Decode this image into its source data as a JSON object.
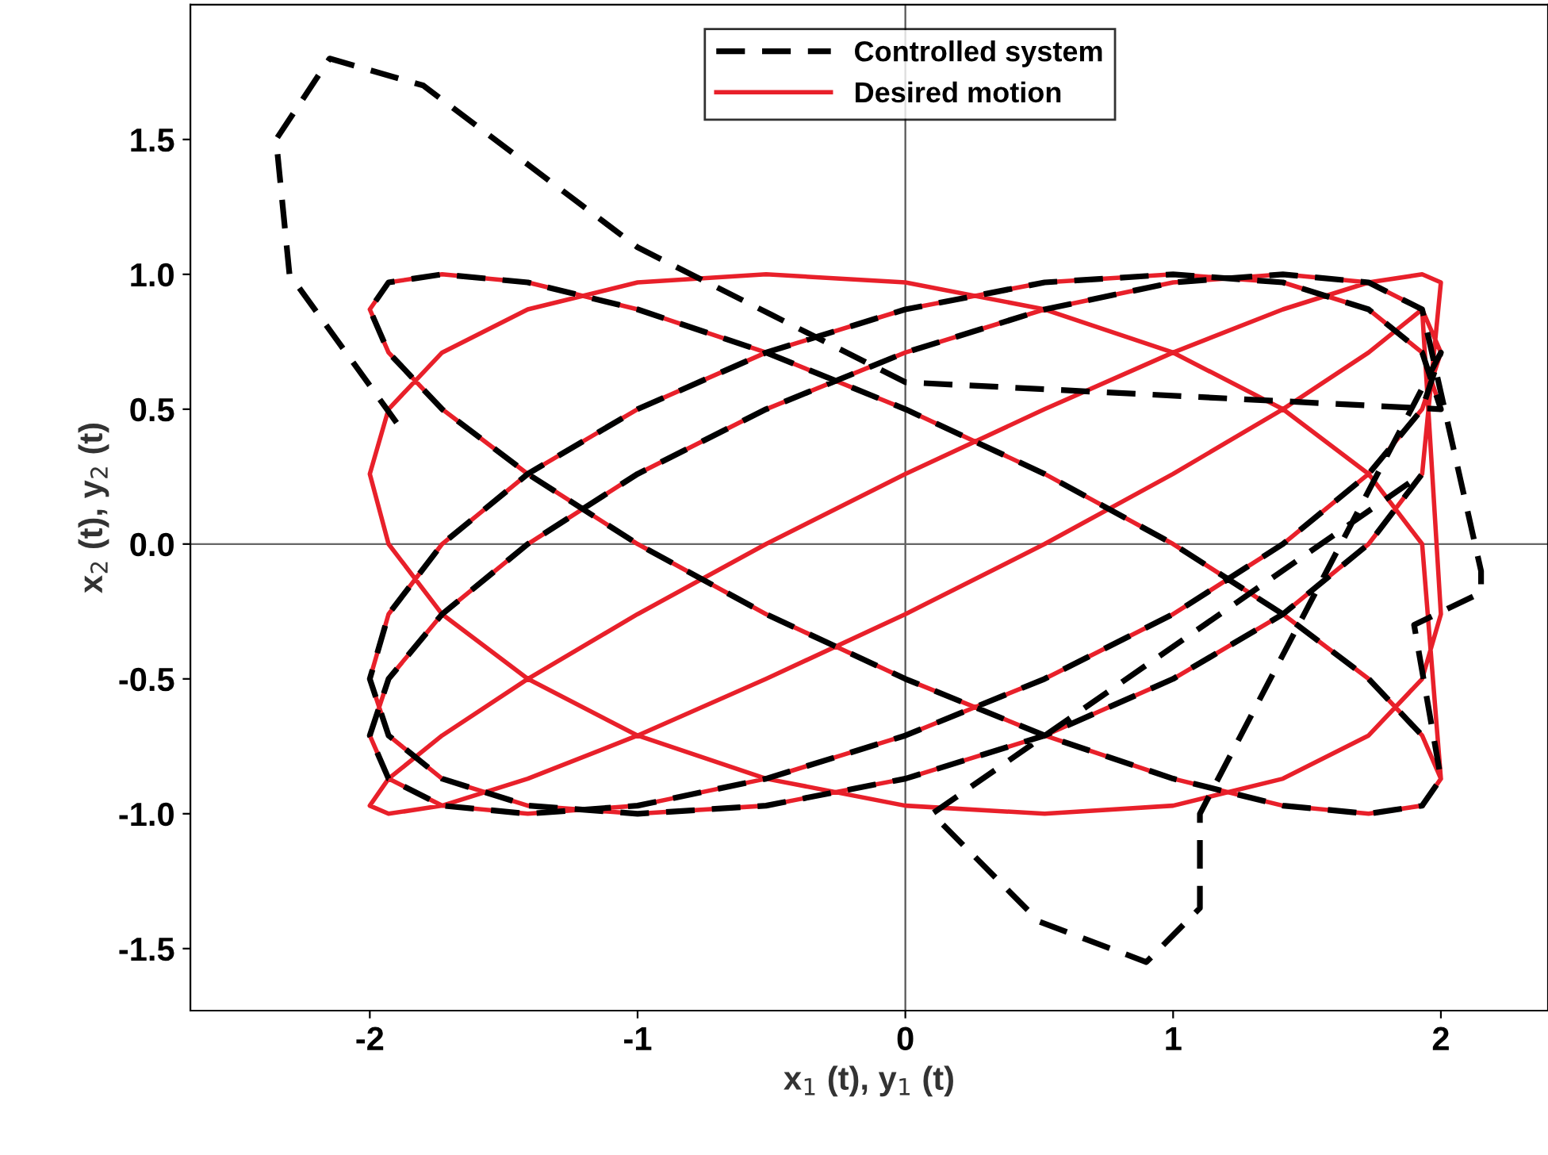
{
  "chart_data": {
    "type": "line",
    "xlabel": "x$_{1}$ (t), y$_{1}$ (t)",
    "ylabel": "x$_{2}$ (t), y$_{2}$ (t)",
    "xlim": [
      -2.67,
      2.4
    ],
    "ylim": [
      -1.73,
      2.0
    ],
    "xticks": [
      -2,
      -1,
      0,
      1,
      2
    ],
    "yticks": [
      {
        "value": -1.5,
        "label": "-1.5"
      },
      {
        "value": -1,
        "label": "-1.0"
      },
      {
        "value": -0.5,
        "label": "-0.5"
      },
      {
        "value": 0,
        "label": "0.0"
      },
      {
        "value": 0.5,
        "label": "0.5"
      },
      {
        "value": 1,
        "label": "1.0"
      },
      {
        "value": 1.5,
        "label": "1.5"
      }
    ],
    "grid": false,
    "legend": "top",
    "ref_lines": [
      {
        "axis": "x",
        "value": 0,
        "label": null,
        "color": "#555555"
      },
      {
        "axis": "y",
        "value": 0,
        "label": null,
        "color": "#666666"
      }
    ],
    "series": [
      {
        "name": "Controlled system",
        "color": "#000000",
        "line_style": "dashed",
        "x": [
          -1.9,
          -2.3,
          -2.35,
          -2.15,
          -1.8,
          -1.4,
          -1.0,
          -0.5,
          0,
          2,
          1.93,
          1.73,
          1.41,
          1,
          0.52,
          0,
          -0.52,
          -1,
          -1.41,
          -1.73,
          -1.93,
          -2,
          -1.93,
          -1.73,
          -1.41,
          -1,
          -0.52,
          0,
          0.52,
          1,
          1.41,
          1.73,
          1.93,
          0.1,
          0.5,
          0.9,
          1.1,
          1.1,
          2,
          1.93,
          1.73,
          1.41,
          1,
          0.52,
          0,
          -0.52,
          -1,
          -1.41,
          -1.73,
          -1.93,
          -2,
          -1.93,
          -1.73,
          -1.41,
          -1,
          -0.52,
          0,
          0.52,
          1,
          1.41,
          1.73,
          1.93,
          2.15,
          2.15,
          1.9,
          2,
          1.93,
          1.73,
          1.41,
          1,
          0.52,
          0,
          -0.52,
          -1,
          -1.41,
          -1.73,
          -1.93,
          -2,
          -1.93,
          -1.73,
          -1.41,
          -1,
          -0.52,
          0,
          0.52,
          1,
          1.41,
          1.73,
          1.93
        ],
        "values": [
          0.45,
          1.0,
          1.5,
          1.8,
          1.7,
          1.4,
          1.1,
          0.85,
          0.6,
          0.5,
          0.71,
          0.87,
          0.97,
          1,
          0.97,
          0.87,
          0.71,
          0.5,
          0.26,
          0,
          -0.26,
          -0.5,
          -0.71,
          -0.87,
          -0.97,
          -1,
          -0.97,
          -0.87,
          -0.71,
          -0.5,
          -0.26,
          0,
          0.26,
          -1.0,
          -1.4,
          -1.55,
          -1.35,
          -1.0,
          0.71,
          0.5,
          0.26,
          0,
          -0.26,
          -0.5,
          -0.71,
          -0.87,
          -0.97,
          -1,
          -0.97,
          -0.87,
          -0.71,
          -0.5,
          -0.26,
          0,
          0.26,
          0.5,
          0.71,
          0.87,
          0.97,
          1,
          0.97,
          0.87,
          -0.1,
          -0.18,
          -0.3,
          -0.87,
          -0.97,
          -1,
          -0.97,
          -0.87,
          -0.71,
          -0.5,
          -0.26,
          0,
          0.26,
          0.5,
          0.71,
          0.87,
          0.97,
          1,
          0.97,
          0.87,
          0.71,
          0.5,
          0.26,
          0,
          -0.26,
          -0.5,
          -0.71
        ]
      },
      {
        "name": "Desired motion",
        "color": "#e8202a",
        "line_style": "solid",
        "x": [
          2,
          1.93,
          1.73,
          1.41,
          1,
          0.52,
          0,
          -0.52,
          -1,
          -1.41,
          -1.73,
          -1.93,
          -2,
          -1.93,
          -1.73,
          -1.41,
          -1,
          -0.52,
          0,
          0.52,
          1,
          1.41,
          1.73,
          1.93,
          2,
          1.93,
          1.73,
          1.41,
          1,
          0.52,
          0,
          -0.52,
          -1,
          -1.41,
          -1.73,
          -1.93,
          -2,
          -1.93,
          -1.73,
          -1.41,
          -1,
          -0.52,
          0,
          0.52,
          1,
          1.41,
          1.73,
          1.93,
          2,
          1.93,
          1.73,
          1.41,
          1,
          0.52,
          0,
          -0.52,
          -1,
          -1.41,
          -1.73,
          -1.93,
          -2,
          -1.93,
          -1.73,
          -1.41,
          -1,
          -0.52,
          0,
          0.52,
          1,
          1.41,
          1.73,
          1.93,
          2,
          1.93,
          1.73,
          1.41,
          1,
          0.52,
          0,
          -0.52,
          -1,
          -1.41,
          -1.73,
          -1.93,
          -2,
          -1.93,
          -1.73,
          -1.41,
          -1,
          -0.52,
          0,
          0.52,
          1,
          1.41,
          1.73,
          1.93,
          2,
          1.93,
          1.73,
          1.41,
          1,
          0.52,
          0,
          -0.52,
          -1,
          -1.41,
          -1.73,
          -1.93,
          -2,
          -1.93,
          -1.73,
          -1.41,
          -1,
          -0.52,
          0,
          0.52,
          1,
          1.41,
          1.73,
          1.93,
          2,
          1.93,
          1.73,
          1.41,
          1,
          0.52,
          0,
          -0.52,
          -1,
          -1.41,
          -1.73,
          -1.93,
          -2,
          -1.93,
          -1.73,
          -1.41,
          -1,
          -0.52,
          0,
          0.52,
          1,
          1.41,
          1.73,
          1.93
        ],
        "values": [
          0.5,
          0.71,
          0.87,
          0.97,
          1,
          0.97,
          0.87,
          0.71,
          0.5,
          0.26,
          0,
          -0.26,
          -0.5,
          -0.71,
          -0.87,
          -0.97,
          -1,
          -0.97,
          -0.87,
          -0.71,
          -0.5,
          -0.26,
          0,
          0.26,
          0.97,
          1,
          0.97,
          0.87,
          0.71,
          0.5,
          0.26,
          0,
          -0.26,
          -0.5,
          -0.71,
          -0.87,
          -0.97,
          -1,
          -0.97,
          -0.87,
          -0.71,
          -0.5,
          -0.26,
          0,
          0.26,
          0.5,
          0.71,
          0.87,
          0.71,
          0.5,
          0.26,
          0,
          -0.26,
          -0.5,
          -0.71,
          -0.87,
          -0.97,
          -1,
          -0.97,
          -0.87,
          -0.71,
          -0.5,
          -0.26,
          0,
          0.26,
          0.5,
          0.71,
          0.87,
          0.97,
          1,
          0.97,
          0.87,
          -0.26,
          -0.5,
          -0.71,
          -0.87,
          -0.97,
          -1,
          -0.97,
          -0.87,
          -0.71,
          -0.5,
          -0.26,
          0,
          0.26,
          0.5,
          0.71,
          0.87,
          0.97,
          1,
          0.97,
          0.87,
          0.71,
          0.5,
          0.26,
          0,
          -0.87,
          -0.97,
          -1,
          -0.97,
          -0.87,
          -0.71,
          -0.5,
          -0.26,
          0,
          0.26,
          0.5,
          0.71,
          0.87,
          0.97,
          1,
          0.97,
          0.87,
          0.71,
          0.5,
          0.26,
          0,
          -0.26,
          -0.5,
          -0.71,
          -0.87,
          -0.71,
          -0.5,
          -0.26,
          0,
          0.26,
          0.5,
          0.71,
          0.87,
          0.97,
          1,
          0.97,
          0.87,
          0.71,
          0.5,
          0.26,
          0,
          -0.26,
          -0.5,
          -0.71,
          -0.87,
          -0.97,
          -1,
          -0.97
        ]
      }
    ]
  }
}
